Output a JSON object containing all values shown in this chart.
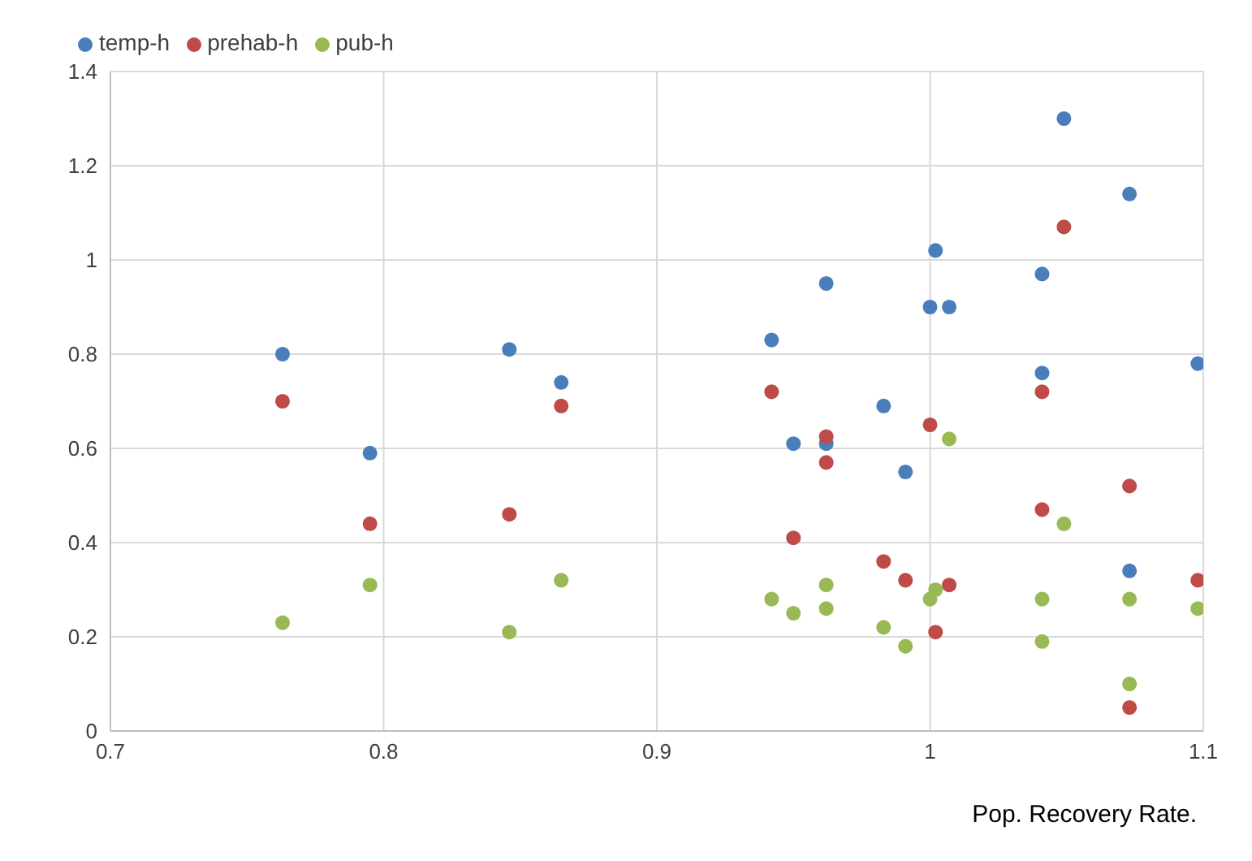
{
  "chart_data": {
    "type": "scatter",
    "xlabel": "Pop. Recovery Rate.",
    "x": [
      0.763,
      0.795,
      0.846,
      0.865,
      0.942,
      0.95,
      0.962,
      0.962,
      0.983,
      0.991,
      1.0,
      1.002,
      1.007,
      1.041,
      1.041,
      1.049,
      1.073,
      1.073,
      1.098
    ],
    "series": [
      {
        "name": "temp-h",
        "color": "#4a7ebb",
        "values": [
          0.8,
          0.59,
          0.81,
          0.74,
          0.83,
          0.61,
          0.95,
          0.61,
          0.69,
          0.55,
          0.9,
          1.02,
          0.9,
          0.97,
          0.76,
          1.3,
          1.14,
          0.34,
          0.78
        ]
      },
      {
        "name": "prehab-h",
        "color": "#be4b48",
        "values": [
          0.7,
          0.44,
          0.46,
          0.69,
          0.72,
          0.41,
          0.625,
          0.57,
          0.36,
          0.32,
          0.65,
          0.21,
          0.31,
          0.72,
          0.47,
          1.07,
          0.52,
          0.05,
          0.32
        ]
      },
      {
        "name": "pub-h",
        "color": "#98b954",
        "values": [
          0.23,
          0.31,
          0.21,
          0.32,
          0.28,
          0.25,
          0.31,
          0.26,
          0.22,
          0.18,
          0.28,
          0.3,
          0.62,
          0.28,
          0.19,
          0.44,
          0.28,
          0.1,
          0.26
        ]
      }
    ],
    "xlim": [
      0.7,
      1.1
    ],
    "xticks": [
      0.7,
      0.8,
      0.9,
      1,
      1.1
    ],
    "ylim": [
      0,
      1.4
    ],
    "yticks": [
      0,
      0.2,
      0.4,
      0.6,
      0.8,
      1,
      1.2,
      1.4
    ],
    "grid": true,
    "legend": "top left",
    "marker": "circle"
  }
}
